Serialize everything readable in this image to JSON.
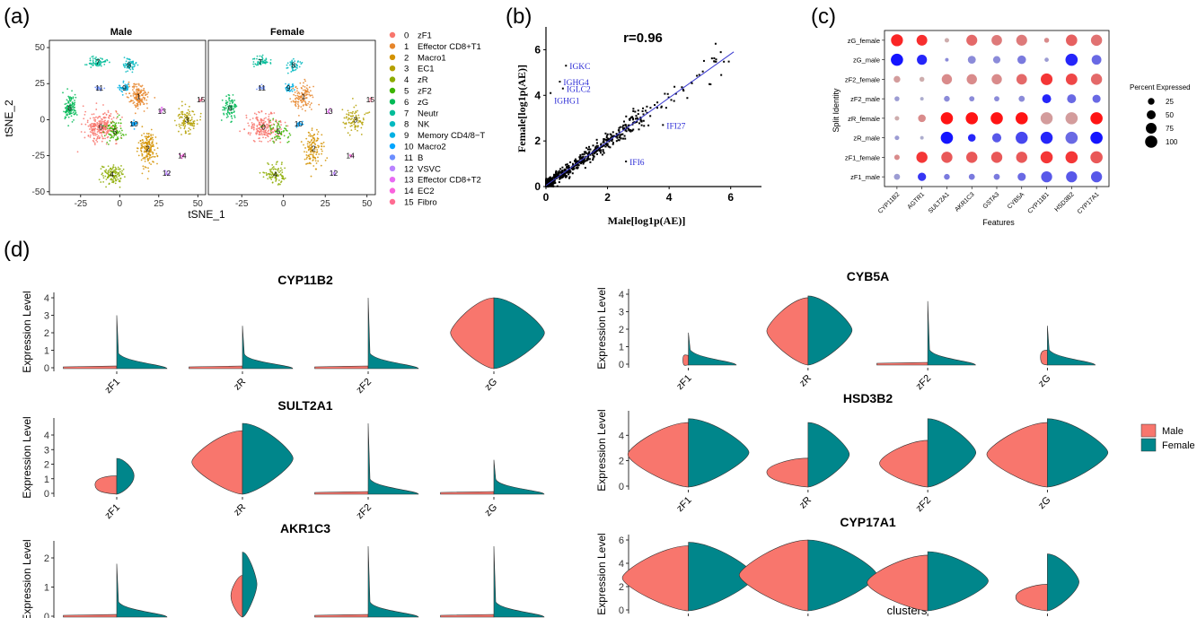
{
  "figure": {
    "panel_labels": [
      "(a)",
      "(b)",
      "(c)",
      "(d)"
    ],
    "colors": {
      "male": "#F8766D",
      "female": "#00868B",
      "accent_blue": "#2c2cd6"
    }
  },
  "chart_data": [
    {
      "type": "scatter",
      "panel": "(a)",
      "subtitle_left": "Male",
      "subtitle_right": "Female",
      "xlabel": "tSNE_1",
      "ylabel": "tSNE_2",
      "xlim": [
        -45,
        55
      ],
      "ylim": [
        -52,
        55
      ],
      "xticks": [
        -25,
        0,
        25,
        50
      ],
      "yticks": [
        -50,
        -25,
        0,
        25,
        50
      ],
      "clusters": [
        {
          "id": "0",
          "name": "zF1",
          "color": "#F8766D",
          "cx": -12,
          "cy": -5,
          "sx": 10,
          "sy": 9,
          "n": 260
        },
        {
          "id": "1",
          "name": "Effector CD8+T1",
          "color": "#E6852A",
          "cx": 12,
          "cy": 16,
          "sx": 6,
          "sy": 8,
          "n": 160
        },
        {
          "id": "2",
          "name": "Macro1",
          "color": "#D39200",
          "cx": 18,
          "cy": -20,
          "sx": 5,
          "sy": 12,
          "n": 170
        },
        {
          "id": "3",
          "name": "EC1",
          "color": "#B4A000",
          "cx": 43,
          "cy": 0,
          "sx": 6,
          "sy": 8,
          "n": 110
        },
        {
          "id": "4",
          "name": "zR",
          "color": "#8CAB00",
          "cx": -5,
          "cy": -38,
          "sx": 6,
          "sy": 6,
          "n": 120
        },
        {
          "id": "5",
          "name": "zF2",
          "color": "#3CB400",
          "cx": -3,
          "cy": -8,
          "sx": 6,
          "sy": 7,
          "n": 80
        },
        {
          "id": "6",
          "name": "zG",
          "color": "#00BA56",
          "cx": -32,
          "cy": 8,
          "sx": 4,
          "sy": 8,
          "n": 110
        },
        {
          "id": "7",
          "name": "Neutr",
          "color": "#00BC99",
          "cx": -14,
          "cy": 40,
          "sx": 5,
          "sy": 3,
          "n": 70
        },
        {
          "id": "8",
          "name": "NK",
          "color": "#00B9C0",
          "cx": 6,
          "cy": 38,
          "sx": 4,
          "sy": 4,
          "n": 60
        },
        {
          "id": "9",
          "name": "Memory CD4/8−T",
          "color": "#00B0E3",
          "cx": 3,
          "cy": 22,
          "sx": 3,
          "sy": 3,
          "n": 40
        },
        {
          "id": "10",
          "name": "Macro2",
          "color": "#00A5FF",
          "cx": 9,
          "cy": -3,
          "sx": 2,
          "sy": 2,
          "n": 25
        },
        {
          "id": "11",
          "name": "B",
          "color": "#6B8EFF",
          "cx": -13,
          "cy": 22,
          "sx": 2,
          "sy": 1.5,
          "n": 18
        },
        {
          "id": "12",
          "name": "VSVC",
          "color": "#B983FF",
          "cx": 30,
          "cy": -37,
          "sx": 1.5,
          "sy": 2,
          "n": 12
        },
        {
          "id": "13",
          "name": "Effector CD8+T2",
          "color": "#E76BF3",
          "cx": 27,
          "cy": 6,
          "sx": 1.5,
          "sy": 2,
          "n": 12
        },
        {
          "id": "14",
          "name": "EC2",
          "color": "#F962DD",
          "cx": 40,
          "cy": -25,
          "sx": 1.5,
          "sy": 1.5,
          "n": 10
        },
        {
          "id": "15",
          "name": "Fibro",
          "color": "#FF6C91",
          "cx": 52,
          "cy": 14,
          "sx": 1.2,
          "sy": 1.2,
          "n": 8
        }
      ]
    },
    {
      "type": "scatter",
      "panel": "(b)",
      "title": "r=0.96",
      "xlabel": "Male[log1p(AE)]",
      "ylabel": "Female[log1p(AE)]",
      "xlim": [
        0,
        7
      ],
      "ylim": [
        0,
        7
      ],
      "xticks": [
        0,
        2,
        4,
        6
      ],
      "yticks": [
        0,
        2,
        4,
        6
      ],
      "fit": {
        "slope": 0.96,
        "intercept": 0.05
      },
      "highlighted": [
        {
          "label": "IGKC",
          "x": 0.65,
          "y": 5.3
        },
        {
          "label": "IGHG4",
          "x": 0.45,
          "y": 4.6
        },
        {
          "label": "IGLC2",
          "x": 0.55,
          "y": 4.3
        },
        {
          "label": "IGHG1",
          "x": 0.15,
          "y": 4.1
        },
        {
          "label": "IFI27",
          "x": 3.8,
          "y": 2.7
        },
        {
          "label": "IFI6",
          "x": 2.6,
          "y": 1.1
        }
      ]
    },
    {
      "type": "scatter",
      "panel": "(c)",
      "subtype": "dotplot",
      "xlabel": "Features",
      "ylabel": "Split Identity",
      "features": [
        "CYP11B2",
        "AGTR1",
        "SULT2A1",
        "AKR1C3",
        "GSTA3",
        "CYB5A",
        "CYP11B1",
        "HSD3B2",
        "CYP17A1"
      ],
      "rows": [
        "zG_female",
        "zG_male",
        "zF2_female",
        "zF2_male",
        "zR_female",
        "zR_male",
        "zF1_female",
        "zF1_male"
      ],
      "legend_title": "Percent Expressed",
      "legend_values": [
        25,
        50,
        75,
        100
      ],
      "pct": [
        [
          95,
          75,
          10,
          78,
          72,
          78,
          12,
          85,
          82
        ],
        [
          100,
          65,
          5,
          38,
          32,
          45,
          8,
          100,
          60
        ],
        [
          25,
          12,
          68,
          68,
          68,
          72,
          92,
          88,
          82
        ],
        [
          12,
          5,
          18,
          14,
          14,
          20,
          50,
          50,
          40
        ],
        [
          10,
          35,
          100,
          100,
          100,
          100,
          98,
          100,
          100
        ],
        [
          10,
          5,
          100,
          35,
          52,
          98,
          98,
          100,
          100
        ],
        [
          15,
          82,
          82,
          82,
          82,
          82,
          100,
          100,
          100
        ],
        [
          20,
          42,
          18,
          20,
          20,
          40,
          80,
          80,
          80
        ]
      ],
      "avg": [
        [
          0.9,
          0.85,
          0.1,
          0.5,
          0.4,
          0.4,
          0.3,
          0.55,
          0.45
        ],
        [
          -1,
          -0.9,
          -0.3,
          -0.3,
          -0.3,
          -0.4,
          -0.2,
          -0.9,
          -0.5
        ],
        [
          0.2,
          0.1,
          0.3,
          0.3,
          0.3,
          0.5,
          0.8,
          0.7,
          0.5
        ],
        [
          -0.2,
          -0.1,
          -0.3,
          -0.3,
          -0.3,
          -0.3,
          -0.9,
          -0.5,
          -0.5
        ],
        [
          0.1,
          0.3,
          1,
          1,
          1,
          1,
          0.2,
          0.2,
          1
        ],
        [
          -0.2,
          -0.1,
          -1,
          -0.9,
          -0.6,
          -0.7,
          -0.9,
          -0.5,
          -1
        ],
        [
          0.3,
          0.8,
          0.6,
          0.6,
          0.6,
          0.6,
          0.8,
          0.8,
          0.6
        ],
        [
          -0.2,
          -0.8,
          -0.4,
          -0.4,
          -0.4,
          -0.5,
          -0.6,
          -0.6,
          -0.6
        ]
      ]
    },
    {
      "type": "area",
      "panel": "(d)",
      "subtype": "split-violin",
      "ylabel": "Expression Level",
      "xlabel": "clusters",
      "clusters": [
        "zF1",
        "zR",
        "zF2",
        "zG"
      ],
      "legend": [
        "Male",
        "Female"
      ],
      "genes": [
        {
          "name": "CYP11B2",
          "ymax": 4,
          "yticks": [
            0,
            1,
            2,
            3,
            4
          ],
          "violins": [
            [
              0.1,
              3.0,
              0.4,
              0.6
            ],
            [
              0,
              2.4,
              0,
              0.2
            ],
            [
              0,
              4.0,
              0.5,
              0.6
            ],
            [
              4.0,
              4.0,
              3.0,
              3.5
            ]
          ]
        },
        {
          "name": "SULT2A1",
          "ymax": 4.8,
          "yticks": [
            0,
            1,
            2,
            3,
            4
          ],
          "violins": [
            [
              1.2,
              2.4,
              1.5,
              1.2
            ],
            [
              4.3,
              4.8,
              3.5,
              3.5
            ],
            [
              0,
              4.8,
              0.3,
              0.5
            ],
            [
              0,
              2.3,
              0.2,
              0.3
            ]
          ]
        },
        {
          "name": "AKR1C3",
          "ymax": 2.4,
          "yticks": [
            0,
            1,
            2
          ],
          "violins": [
            [
              0,
              1.8,
              0.3,
              0.5
            ],
            [
              1.4,
              2.2,
              0.8,
              1.0
            ],
            [
              0,
              2.4,
              0.2,
              0.4
            ],
            [
              0,
              2.4,
              0.3,
              0.5
            ]
          ]
        },
        {
          "name": "CYB5A",
          "ymax": 4,
          "yticks": [
            0,
            1,
            2,
            3,
            4
          ],
          "violins": [
            [
              0.5,
              1.8,
              0.4,
              0.6
            ],
            [
              3.8,
              3.9,
              3.0,
              3.2
            ],
            [
              0,
              3.6,
              0.6,
              0.5
            ],
            [
              0.8,
              2.2,
              0.5,
              0.6
            ]
          ]
        },
        {
          "name": "HSD3B2",
          "ymax": 5.5,
          "yticks": [
            0,
            2,
            4
          ],
          "violins": [
            [
              5.0,
              5.3,
              4.4,
              4.4
            ],
            [
              2.2,
              5.0,
              3.0,
              3.0
            ],
            [
              3.6,
              5.3,
              3.5,
              3.5
            ],
            [
              5.0,
              5.3,
              4.4,
              4.4
            ]
          ]
        },
        {
          "name": "CYP17A1",
          "ymax": 6,
          "yticks": [
            0,
            2,
            4,
            6
          ],
          "violins": [
            [
              5.5,
              5.8,
              4.8,
              4.8
            ],
            [
              6.0,
              6.0,
              5.0,
              5.0
            ],
            [
              4.7,
              5.0,
              4.4,
              4.4
            ],
            [
              2.2,
              4.8,
              2.3,
              2.3
            ]
          ]
        }
      ]
    }
  ]
}
